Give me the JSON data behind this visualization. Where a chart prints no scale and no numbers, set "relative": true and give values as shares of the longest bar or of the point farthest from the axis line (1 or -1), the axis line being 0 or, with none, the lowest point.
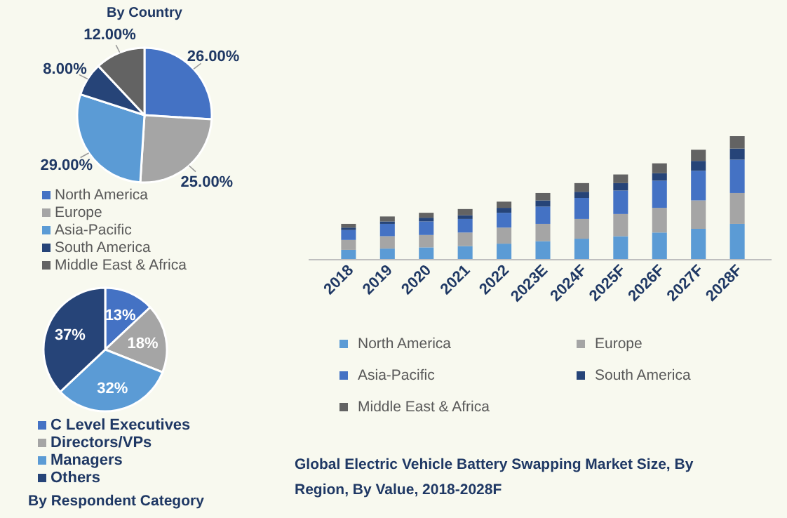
{
  "chart_data": [
    {
      "type": "pie",
      "title": "By Country",
      "categories": [
        "North America",
        "Europe",
        "Asia-Pacific",
        "South America",
        "Middle East & Africa"
      ],
      "values": [
        26,
        25,
        29,
        8,
        12
      ],
      "value_labels": [
        "26.00%",
        "25.00%",
        "29.00%",
        "8.00%",
        "12.00%"
      ],
      "colors": [
        "#4472c4",
        "#a5a5a5",
        "#5b9bd5",
        "#264478",
        "#636363"
      ],
      "legend": "bottom"
    },
    {
      "type": "pie",
      "title": "By Respondent Category",
      "categories": [
        "C Level Executives",
        "Directors/VPs",
        "Managers",
        "Others"
      ],
      "values": [
        13,
        18,
        32,
        37
      ],
      "value_labels": [
        "13%",
        "18%",
        "32%",
        "37%"
      ],
      "colors": [
        "#4472c4",
        "#a5a5a5",
        "#5b9bd5",
        "#264478"
      ],
      "legend": "bottom"
    },
    {
      "type": "bar",
      "title": "Global Electric Vehicle Battery Swapping Market Size, By Region, By Value, 2018-2028F",
      "relative": true,
      "stacked": true,
      "legend": "bottom",
      "categories": [
        "2018",
        "2019",
        "2020",
        "2021",
        "2022",
        "2023E",
        "2024F",
        "2025F",
        "2026F",
        "2027F",
        "2028F"
      ],
      "series": [
        {
          "name": "North America",
          "color": "#5b9bd5",
          "values": [
            0.08,
            0.09,
            0.1,
            0.11,
            0.13,
            0.15,
            0.17,
            0.19,
            0.22,
            0.25,
            0.29
          ]
        },
        {
          "name": "Europe",
          "color": "#a5a5a5",
          "values": [
            0.08,
            0.1,
            0.1,
            0.11,
            0.13,
            0.14,
            0.16,
            0.18,
            0.2,
            0.23,
            0.25
          ]
        },
        {
          "name": "Asia-Pacific",
          "color": "#4472c4",
          "values": [
            0.08,
            0.1,
            0.11,
            0.11,
            0.12,
            0.14,
            0.17,
            0.19,
            0.22,
            0.24,
            0.27
          ]
        },
        {
          "name": "South America",
          "color": "#264478",
          "values": [
            0.02,
            0.02,
            0.03,
            0.03,
            0.04,
            0.05,
            0.05,
            0.06,
            0.06,
            0.08,
            0.09
          ]
        },
        {
          "name": "Middle East & Africa",
          "color": "#636363",
          "values": [
            0.03,
            0.04,
            0.04,
            0.05,
            0.05,
            0.06,
            0.07,
            0.07,
            0.08,
            0.09,
            0.1
          ]
        }
      ]
    }
  ]
}
